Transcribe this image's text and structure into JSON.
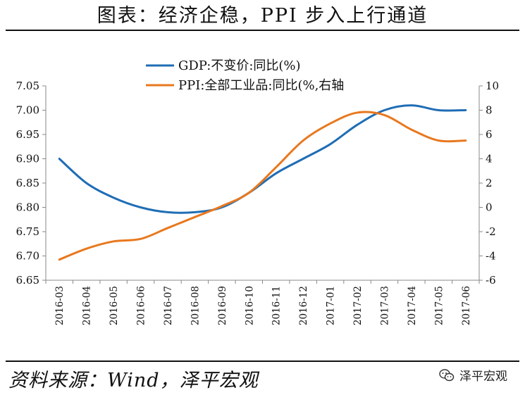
{
  "header": {
    "title": "图表：经济企稳，PPI 步入上行通道"
  },
  "footer": {
    "source": "资料来源：Wind，泽平宏观",
    "watermark": "泽平宏观",
    "watermark_icon": "wechat-icon"
  },
  "chart_data": {
    "type": "line",
    "title": "",
    "categories": [
      "2016-03",
      "2016-04",
      "2016-05",
      "2016-06",
      "2016-07",
      "2016-08",
      "2016-09",
      "2016-10",
      "2016-11",
      "2016-12",
      "2017-01",
      "2017-02",
      "2017-03",
      "2017-04",
      "2017-05",
      "2017-06"
    ],
    "series": [
      {
        "name": "GDP:不变价:同比(%)",
        "axis": "left",
        "color": "#1F6DB5",
        "values": [
          6.9,
          6.85,
          6.82,
          6.8,
          6.79,
          6.79,
          6.8,
          6.83,
          6.87,
          6.9,
          6.93,
          6.97,
          7.0,
          7.01,
          7.0,
          7.0
        ]
      },
      {
        "name": "PPI:全部工业品:同比(%,右轴",
        "axis": "right",
        "color": "#E8781E",
        "values": [
          -4.3,
          -3.4,
          -2.8,
          -2.6,
          -1.7,
          -0.8,
          0.1,
          1.2,
          3.3,
          5.5,
          6.9,
          7.8,
          7.6,
          6.4,
          5.5,
          5.5
        ]
      }
    ],
    "ylim_left": [
      6.65,
      7.05
    ],
    "yticks_left": [
      "6.65",
      "6.70",
      "6.75",
      "6.80",
      "6.85",
      "6.90",
      "6.95",
      "7.00",
      "7.05"
    ],
    "ylim_right": [
      -6,
      10
    ],
    "yticks_right": [
      "-6",
      "-4",
      "-2",
      "0",
      "2",
      "4",
      "6",
      "8",
      "10"
    ],
    "legend_position": "top-center",
    "grid": false
  }
}
